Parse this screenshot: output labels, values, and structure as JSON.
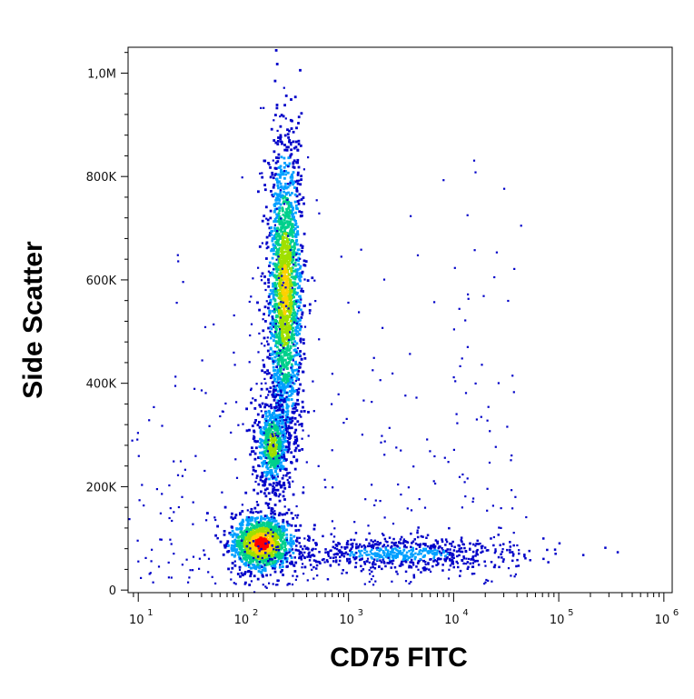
{
  "chart_data": {
    "type": "scatter",
    "xlabel": "CD75 FITC",
    "ylabel": "Side Scatter",
    "x_scale": "log",
    "xlim": [
      8,
      1200000
    ],
    "ylim": [
      -5000,
      1050000
    ],
    "x_ticks": [
      {
        "value": 10,
        "base": "10",
        "exp": "1"
      },
      {
        "value": 100,
        "base": "10",
        "exp": "2"
      },
      {
        "value": 1000,
        "base": "10",
        "exp": "3"
      },
      {
        "value": 10000,
        "base": "10",
        "exp": "4"
      },
      {
        "value": 100000,
        "base": "10",
        "exp": "5"
      },
      {
        "value": 1000000,
        "base": "10",
        "exp": "6"
      }
    ],
    "y_ticks": [
      {
        "value": 0,
        "label": "0"
      },
      {
        "value": 200000,
        "label": "200K"
      },
      {
        "value": 400000,
        "label": "400K"
      },
      {
        "value": 600000,
        "label": "600K"
      },
      {
        "value": 800000,
        "label": "800K"
      },
      {
        "value": 1000000,
        "label": "1,0M"
      }
    ],
    "grid": false,
    "legend": "none",
    "color_scale": [
      "#0000c8",
      "#00a0ff",
      "#00d08c",
      "#a0e000",
      "#ffd000",
      "#ff0000"
    ],
    "populations": [
      {
        "x_center": 150,
        "y_center": 90000,
        "x_spread_decades": 0.14,
        "y_spread": 25000,
        "density": "highest"
      },
      {
        "x_center": 250,
        "y_center": 580000,
        "x_spread_decades": 0.08,
        "y_spread": 140000,
        "density": "high"
      },
      {
        "x_center": 190,
        "y_center": 280000,
        "x_spread_decades": 0.08,
        "y_spread": 45000,
        "density": "medium"
      },
      {
        "x_center": 3000,
        "y_center": 70000,
        "x_spread_decades": 0.6,
        "y_spread": 15000,
        "density": "low"
      }
    ]
  }
}
